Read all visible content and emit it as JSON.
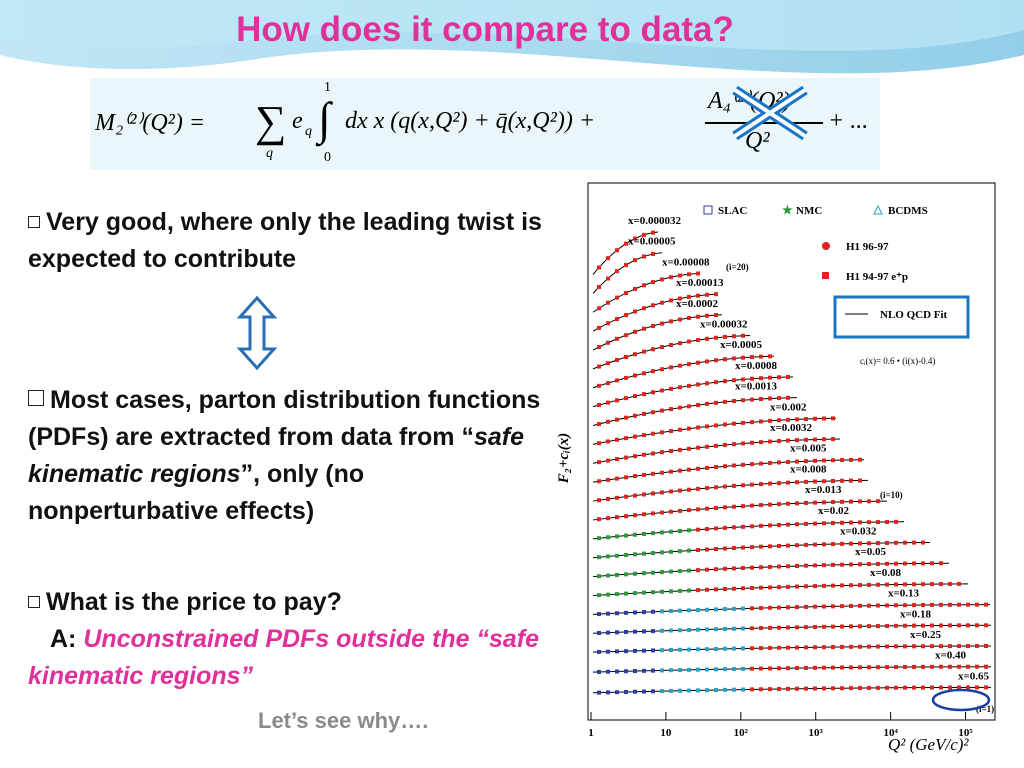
{
  "title": "How does it compare to data?",
  "formula": {
    "lhs": "M₂⁽²⁾(Q²) =",
    "sum": "∑",
    "sum_index": "q",
    "coef": "e",
    "coef_index": "q",
    "integral": "∫",
    "upper": "1",
    "lower": "0",
    "integrand": "dx x (q(x,Q²) + q̄(x,Q²)) +",
    "numerator": "A₄⁽²⁾(Q²)",
    "denominator": "Q²",
    "tail": "+ ..."
  },
  "bullets": [
    {
      "text": "Very good, where only the leading twist is expected to contribute"
    },
    {
      "before": "Most cases, parton distribution functions (PDFs) are extracted from data from “",
      "italic": "safe kinematic regions",
      "after": "”, only (no nonperturbative effects)"
    },
    {
      "text": "What is the price to pay?",
      "answer_label": "A:",
      "answer": "Unconstrained PDFs outside the “safe kinematic regions”"
    }
  ],
  "footer": "Let’s see why….",
  "plot": {
    "legend": [
      "SLAC",
      "NMC",
      "BCDMS",
      "H1 96-97",
      "H1 94-97 e⁺p",
      "NLO QCD Fit"
    ],
    "offset_note": "cᵢ(x)= 0.6 • (i(x)-0.4)",
    "index_notes": [
      "(i=20)",
      "(i=10)",
      "(i=1)"
    ],
    "y_label": "F₂+cᵢ(x)",
    "x_label": "Q² (GeV/c)²",
    "x_ticks": [
      "1",
      "10",
      "10²",
      "10³",
      "10⁴",
      "10⁵"
    ],
    "curve_labels": [
      "x=0.000032",
      "x=0.00005",
      "x=0.00008",
      "x=0.00013",
      "x=0.0002",
      "x=0.00032",
      "x=0.0005",
      "x=0.0008",
      "x=0.0013",
      "x=0.002",
      "x=0.0032",
      "x=0.005",
      "x=0.008",
      "x=0.013",
      "x=0.02",
      "x=0.032",
      "x=0.05",
      "x=0.08",
      "x=0.13",
      "x=0.18",
      "x=0.25",
      "x=0.40",
      "x=0.65"
    ]
  }
}
